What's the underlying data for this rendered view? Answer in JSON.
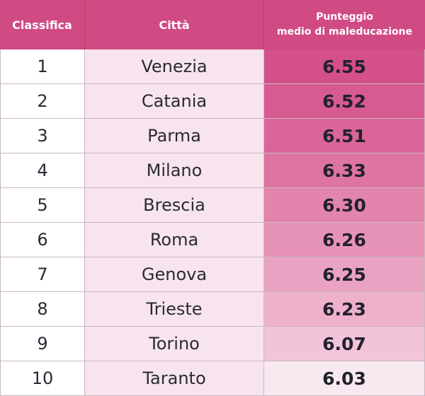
{
  "headers": {
    "rank": "Classifica",
    "city": "Città",
    "score_line1": "Punteggio",
    "score_line2": "medio di maleducazione"
  },
  "rows": [
    {
      "rank": "1",
      "city": "Venezia",
      "score": "6.55",
      "bg": "#d45089"
    },
    {
      "rank": "2",
      "city": "Catania",
      "score": "6.52",
      "bg": "#d75a90"
    },
    {
      "rank": "3",
      "city": "Parma",
      "score": "6.51",
      "bg": "#da6598"
    },
    {
      "rank": "4",
      "city": "Milano",
      "score": "6.33",
      "bg": "#de74a2"
    },
    {
      "rank": "5",
      "city": "Brescia",
      "score": "6.30",
      "bg": "#e384ad"
    },
    {
      "rank": "6",
      "city": "Roma",
      "score": "6.26",
      "bg": "#e793b8"
    },
    {
      "rank": "7",
      "city": "Genova",
      "score": "6.25",
      "bg": "#eaa2c2"
    },
    {
      "rank": "8",
      "city": "Trieste",
      "score": "6.23",
      "bg": "#eeb1cb"
    },
    {
      "rank": "9",
      "city": "Torino",
      "score": "6.07",
      "bg": "#f3c4d9"
    },
    {
      "rank": "10",
      "city": "Taranto",
      "score": "6.03",
      "bg": "#f8e9f0"
    }
  ],
  "colors": {
    "header_bg": "#d04a84",
    "header_text": "#ffffff",
    "city_bg": "#f7e4ee",
    "rank_bg": "#ffffff"
  }
}
